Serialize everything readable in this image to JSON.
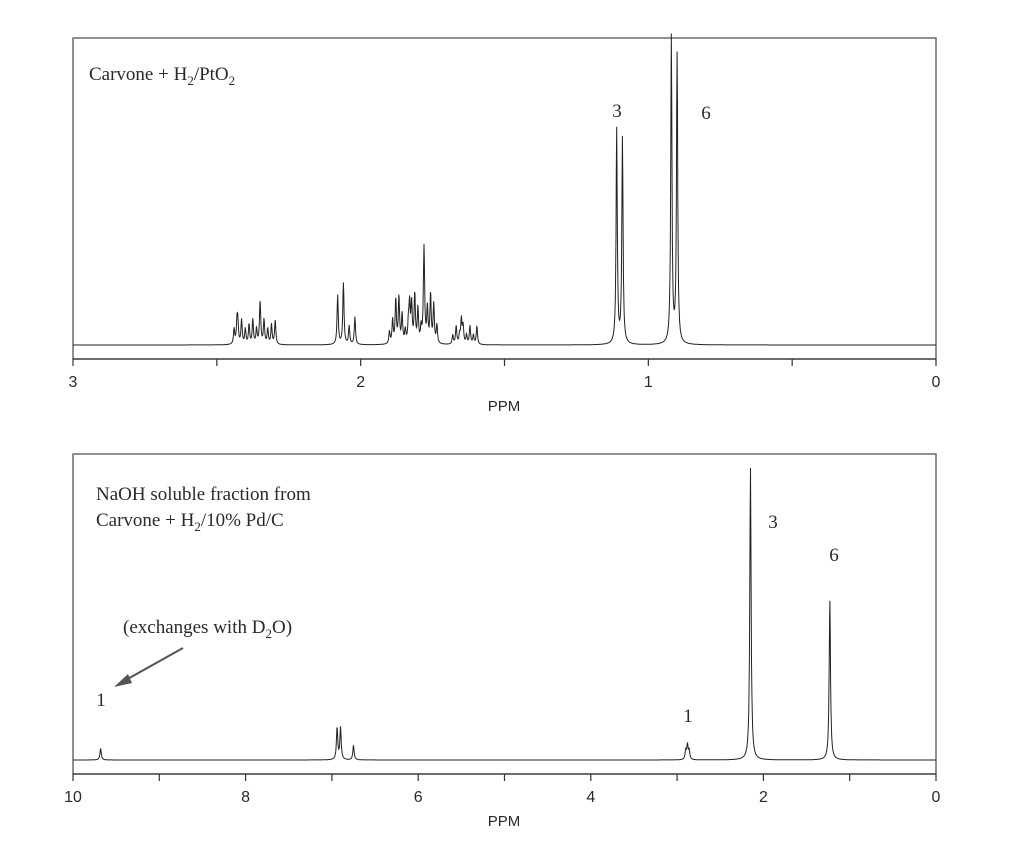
{
  "chart_data": [
    {
      "type": "line",
      "title": "Carvone + H2/PtO2",
      "title_parts": {
        "pre": "Carvone + H",
        "sub1": "2",
        "mid": "/PtO",
        "sub2": "2"
      },
      "xlabel": "PPM",
      "ylabel": "",
      "xlim": [
        3,
        0
      ],
      "x_ticks": [
        3,
        2.5,
        2,
        1.5,
        1,
        0.5,
        0
      ],
      "x_tick_labels": [
        "3",
        "2",
        "1",
        "0"
      ],
      "x_labeled_ticks": [
        3,
        2,
        1,
        0
      ],
      "grid": false,
      "peaks": [
        {
          "ppm": 2.43,
          "rel_height": 0.07
        },
        {
          "ppm": 2.35,
          "rel_height": 0.08
        },
        {
          "ppm": 2.08,
          "rel_height": 0.1
        },
        {
          "ppm": 2.06,
          "rel_height": 0.11
        },
        {
          "ppm": 1.83,
          "rel_height": 0.12
        },
        {
          "ppm": 1.78,
          "rel_height": 0.27
        },
        {
          "ppm": 1.65,
          "rel_height": 0.08
        },
        {
          "ppm": 1.11,
          "rel_height": 0.7
        },
        {
          "ppm": 1.09,
          "rel_height": 0.67
        },
        {
          "ppm": 0.92,
          "rel_height": 1.0
        },
        {
          "ppm": 0.9,
          "rel_height": 0.94
        }
      ],
      "annotations": [
        {
          "text": "3",
          "ppm": 1.05,
          "label": "integration 3H"
        },
        {
          "text": "6",
          "ppm": 0.8,
          "label": "integration 6H"
        }
      ]
    },
    {
      "type": "line",
      "title": "NaOH soluble fraction from Carvone + H2/10% Pd/C",
      "title_line1": "NaOH soluble fraction from",
      "title_line2_parts": {
        "pre": "Carvone + H",
        "sub": "2",
        "post": "/10% Pd/C"
      },
      "xlabel": "PPM",
      "ylabel": "",
      "xlim": [
        10,
        0
      ],
      "x_ticks": [
        10,
        9,
        8,
        7,
        6,
        5,
        4,
        3,
        2,
        1,
        0
      ],
      "x_tick_labels": [
        "10",
        "8",
        "6",
        "4",
        "2",
        "0"
      ],
      "x_labeled_ticks": [
        10,
        8,
        6,
        4,
        2,
        0
      ],
      "grid": false,
      "peaks": [
        {
          "ppm": 9.68,
          "rel_height": 0.04
        },
        {
          "ppm": 6.94,
          "rel_height": 0.11
        },
        {
          "ppm": 6.9,
          "rel_height": 0.11
        },
        {
          "ppm": 6.75,
          "rel_height": 0.05
        },
        {
          "ppm": 2.88,
          "rel_height": 0.05
        },
        {
          "ppm": 2.15,
          "rel_height": 1.0
        },
        {
          "ppm": 1.23,
          "rel_height": 0.55
        }
      ],
      "annotations": [
        {
          "text": "(exchanges with D2O)",
          "parts": {
            "pre": "(exchanges with D",
            "sub": "2",
            "post": "O)"
          }
        },
        {
          "text": "1",
          "ppm": 9.68,
          "label": "integration 1H (OH)"
        },
        {
          "text": "1",
          "ppm": 2.88,
          "label": "integration 1H"
        },
        {
          "text": "3",
          "ppm": 1.9,
          "label": "integration 3H"
        },
        {
          "text": "6",
          "ppm": 1.2,
          "label": "integration 6H"
        }
      ]
    }
  ],
  "labels": {
    "top_3": "3",
    "top_6": "6",
    "bot_1a": "1",
    "bot_1b": "1",
    "bot_3": "3",
    "bot_6": "6",
    "ppm": "PPM"
  }
}
